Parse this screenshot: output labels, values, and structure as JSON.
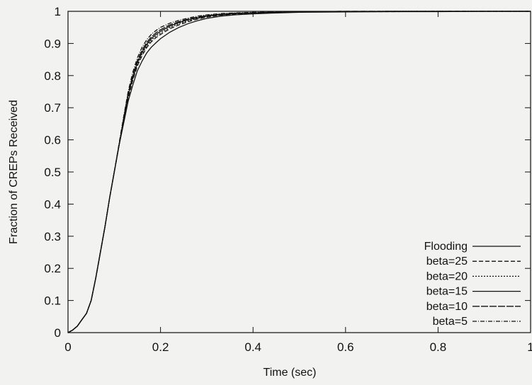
{
  "chart_data": {
    "type": "line",
    "title": "",
    "xlabel": "Time (sec)",
    "ylabel": "Fraction of CREPs Received",
    "xlim": [
      0,
      1
    ],
    "ylim": [
      0,
      1
    ],
    "x_ticks": [
      "0",
      "0.2",
      "0.4",
      "0.6",
      "0.8",
      "1"
    ],
    "y_ticks": [
      "0",
      "0.1",
      "0.2",
      "0.3",
      "0.4",
      "0.5",
      "0.6",
      "0.7",
      "0.8",
      "0.9",
      "1"
    ],
    "legend_position": "bottom-right",
    "grid": false,
    "series": [
      {
        "name": "Flooding",
        "dash": "",
        "x": [
          0,
          0.01,
          0.02,
          0.03,
          0.04,
          0.05,
          0.06,
          0.07,
          0.08,
          0.09,
          0.1,
          0.11,
          0.12,
          0.13,
          0.14,
          0.15,
          0.16,
          0.17,
          0.18,
          0.19,
          0.2,
          0.22,
          0.24,
          0.26,
          0.28,
          0.3,
          0.33,
          0.36,
          0.4,
          0.45,
          0.5,
          0.6,
          0.7,
          0.8,
          0.9,
          1.0
        ],
        "y": [
          0,
          0.008,
          0.02,
          0.04,
          0.06,
          0.1,
          0.17,
          0.25,
          0.33,
          0.42,
          0.5,
          0.58,
          0.65,
          0.72,
          0.77,
          0.815,
          0.845,
          0.87,
          0.888,
          0.902,
          0.915,
          0.935,
          0.95,
          0.962,
          0.971,
          0.978,
          0.985,
          0.989,
          0.992,
          0.995,
          0.997,
          0.998,
          0.999,
          0.999,
          1.0,
          1.0
        ]
      },
      {
        "name": "beta=25",
        "dash": "6,3",
        "x": [
          0,
          0.01,
          0.02,
          0.03,
          0.04,
          0.05,
          0.06,
          0.07,
          0.08,
          0.09,
          0.1,
          0.11,
          0.12,
          0.13,
          0.14,
          0.15,
          0.16,
          0.17,
          0.18,
          0.19,
          0.2,
          0.22,
          0.24,
          0.26,
          0.28,
          0.3,
          0.33,
          0.36,
          0.4,
          0.45,
          0.5,
          0.6,
          0.7,
          0.8,
          0.9,
          1.0
        ],
        "y": [
          0,
          0.008,
          0.02,
          0.04,
          0.06,
          0.1,
          0.17,
          0.25,
          0.33,
          0.42,
          0.5,
          0.58,
          0.66,
          0.73,
          0.785,
          0.83,
          0.862,
          0.887,
          0.905,
          0.918,
          0.928,
          0.946,
          0.958,
          0.968,
          0.976,
          0.982,
          0.988,
          0.991,
          0.994,
          0.996,
          0.998,
          0.999,
          0.999,
          1.0,
          1.0,
          1.0
        ]
      },
      {
        "name": "beta=20",
        "dash": "2,2",
        "x": [
          0,
          0.01,
          0.02,
          0.03,
          0.04,
          0.05,
          0.06,
          0.07,
          0.08,
          0.09,
          0.1,
          0.11,
          0.12,
          0.13,
          0.14,
          0.15,
          0.16,
          0.17,
          0.18,
          0.19,
          0.2,
          0.22,
          0.24,
          0.26,
          0.28,
          0.3,
          0.33,
          0.36,
          0.4,
          0.45,
          0.5,
          0.6,
          0.7,
          0.8,
          0.9,
          1.0
        ],
        "y": [
          0,
          0.008,
          0.02,
          0.04,
          0.06,
          0.1,
          0.17,
          0.25,
          0.33,
          0.42,
          0.5,
          0.58,
          0.66,
          0.735,
          0.79,
          0.835,
          0.868,
          0.892,
          0.91,
          0.923,
          0.933,
          0.95,
          0.962,
          0.971,
          0.978,
          0.984,
          0.989,
          0.992,
          0.995,
          0.997,
          0.998,
          0.999,
          1.0,
          1.0,
          1.0,
          1.0
        ]
      },
      {
        "name": "beta=15",
        "dash": "",
        "x": [
          0,
          0.01,
          0.02,
          0.03,
          0.04,
          0.05,
          0.06,
          0.07,
          0.08,
          0.09,
          0.1,
          0.11,
          0.12,
          0.13,
          0.14,
          0.15,
          0.16,
          0.17,
          0.18,
          0.19,
          0.2,
          0.22,
          0.24,
          0.26,
          0.28,
          0.3,
          0.33,
          0.36,
          0.4,
          0.45,
          0.5,
          0.6,
          0.7,
          0.8,
          0.9,
          1.0
        ],
        "y": [
          0,
          0.008,
          0.02,
          0.04,
          0.06,
          0.1,
          0.17,
          0.25,
          0.33,
          0.42,
          0.5,
          0.58,
          0.66,
          0.74,
          0.795,
          0.84,
          0.873,
          0.897,
          0.915,
          0.928,
          0.938,
          0.954,
          0.965,
          0.974,
          0.98,
          0.985,
          0.99,
          0.993,
          0.995,
          0.997,
          0.998,
          0.999,
          1.0,
          1.0,
          1.0,
          1.0
        ]
      },
      {
        "name": "beta=10",
        "dash": "10,2",
        "x": [
          0,
          0.01,
          0.02,
          0.03,
          0.04,
          0.05,
          0.06,
          0.07,
          0.08,
          0.09,
          0.1,
          0.11,
          0.12,
          0.13,
          0.14,
          0.15,
          0.16,
          0.17,
          0.18,
          0.19,
          0.2,
          0.22,
          0.24,
          0.26,
          0.28,
          0.3,
          0.33,
          0.36,
          0.4,
          0.45,
          0.5,
          0.6,
          0.7,
          0.8,
          0.9,
          1.0
        ],
        "y": [
          0,
          0.008,
          0.02,
          0.04,
          0.06,
          0.1,
          0.17,
          0.25,
          0.33,
          0.42,
          0.5,
          0.58,
          0.665,
          0.745,
          0.8,
          0.846,
          0.879,
          0.903,
          0.92,
          0.933,
          0.943,
          0.958,
          0.968,
          0.976,
          0.982,
          0.987,
          0.991,
          0.994,
          0.996,
          0.998,
          0.999,
          1.0,
          1.0,
          1.0,
          1.0,
          1.0
        ]
      },
      {
        "name": "beta=5",
        "dash": "6,2,1,2",
        "x": [
          0,
          0.01,
          0.02,
          0.03,
          0.04,
          0.05,
          0.06,
          0.07,
          0.08,
          0.09,
          0.1,
          0.11,
          0.12,
          0.13,
          0.14,
          0.15,
          0.16,
          0.17,
          0.18,
          0.19,
          0.2,
          0.22,
          0.24,
          0.26,
          0.28,
          0.3,
          0.33,
          0.36,
          0.4,
          0.45,
          0.5,
          0.6,
          0.7,
          0.8,
          0.9,
          1.0
        ],
        "y": [
          0,
          0.008,
          0.02,
          0.04,
          0.06,
          0.1,
          0.17,
          0.25,
          0.33,
          0.42,
          0.5,
          0.585,
          0.67,
          0.75,
          0.81,
          0.855,
          0.888,
          0.911,
          0.928,
          0.94,
          0.95,
          0.963,
          0.972,
          0.979,
          0.985,
          0.989,
          0.993,
          0.995,
          0.997,
          0.998,
          0.999,
          1.0,
          1.0,
          1.0,
          1.0,
          1.0
        ]
      }
    ]
  }
}
